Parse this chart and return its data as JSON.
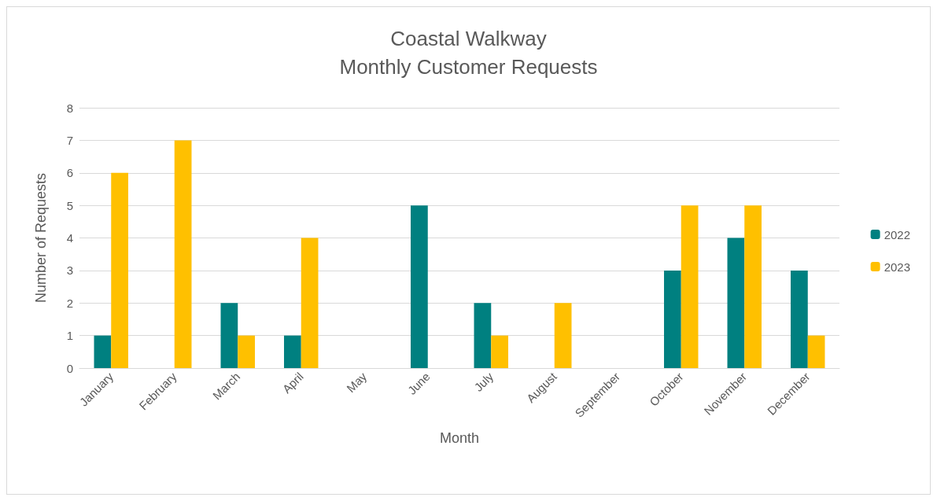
{
  "chart_data": {
    "type": "bar",
    "title": "Coastal Walkway",
    "subtitle": "Monthly Customer Requests",
    "xlabel": "Month",
    "ylabel": "Number of Requests",
    "categories": [
      "January",
      "February",
      "March",
      "April",
      "May",
      "June",
      "July",
      "August",
      "September",
      "October",
      "November",
      "December"
    ],
    "series": [
      {
        "name": "2022",
        "color": "#008080",
        "values": [
          1,
          0,
          2,
          1,
          0,
          5,
          2,
          0,
          0,
          3,
          4,
          3
        ]
      },
      {
        "name": "2023",
        "color": "#ffc000",
        "values": [
          6,
          7,
          1,
          4,
          0,
          0,
          1,
          2,
          0,
          5,
          5,
          1
        ]
      }
    ],
    "ylim": [
      0,
      8
    ],
    "yticks": [
      0,
      1,
      2,
      3,
      4,
      5,
      6,
      7,
      8
    ],
    "grid": "y",
    "legend": "right"
  }
}
